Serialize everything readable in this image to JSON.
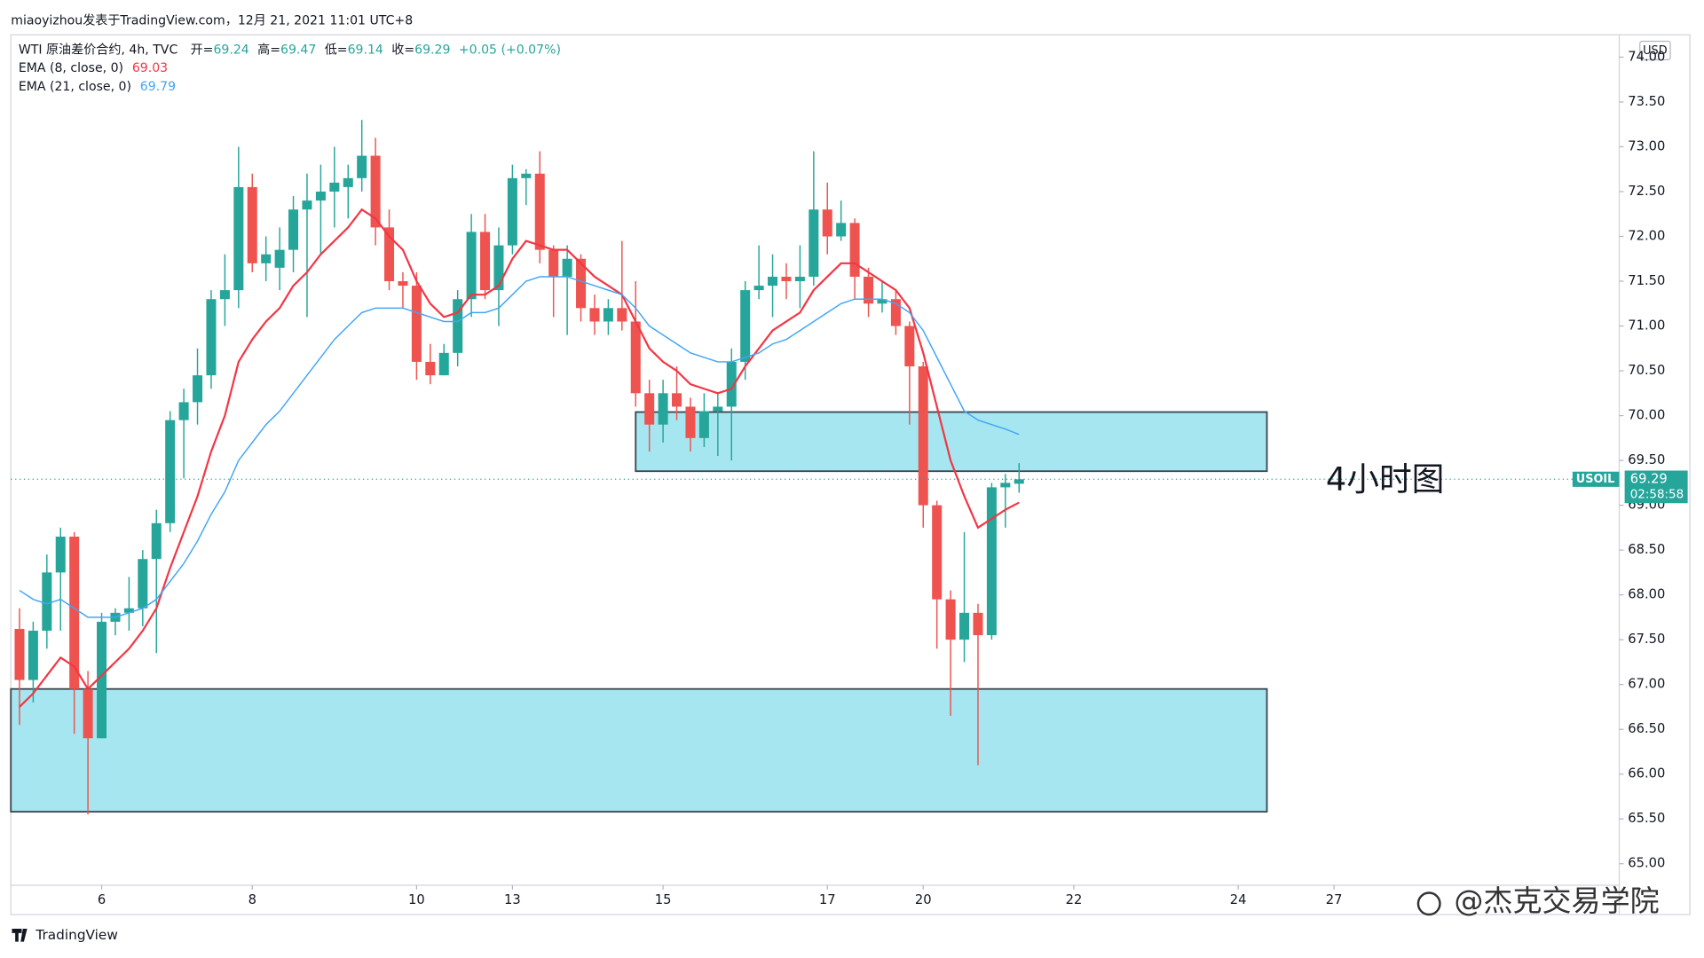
{
  "page": {
    "caption": "miaoyizhou发表于TradingView.com，12月 21, 2021 11:01 UTC+8",
    "brand": "TradingView",
    "author": "@杰克交易学院",
    "annotation": "4小时图"
  },
  "chart_data": {
    "type": "candlestick",
    "symbol_line": "WTI 原油差价合约, 4h, TVC",
    "ohlc_labels": [
      "开=",
      "高=",
      "低=",
      "收="
    ],
    "change": "+0.05 (+0.07%)",
    "currency": "USD",
    "ticker": "USOIL",
    "countdown": "02:58:58",
    "up_color": "#26a69a",
    "down_color": "#ef5350",
    "zone_color": "#a5e6f0",
    "xlim": [
      -0.63,
      116.83
    ],
    "xticks": [
      {
        "value": 6,
        "label": "6"
      },
      {
        "value": 17,
        "label": "8"
      },
      {
        "value": 29,
        "label": "10"
      },
      {
        "value": 36,
        "label": "13"
      },
      {
        "value": 47,
        "label": "15"
      },
      {
        "value": 59,
        "label": "17"
      },
      {
        "value": 66,
        "label": "20"
      },
      {
        "value": 77,
        "label": "22"
      },
      {
        "value": 89,
        "label": "24"
      },
      {
        "value": 96,
        "label": "27"
      }
    ],
    "ylim": [
      64.76,
      74.25
    ],
    "yticks": [
      {
        "value": 65,
        "label": "65.00"
      },
      {
        "value": 65.5,
        "label": "65.50"
      },
      {
        "value": 66,
        "label": "66.00"
      },
      {
        "value": 66.5,
        "label": "66.50"
      },
      {
        "value": 67,
        "label": "67.00"
      },
      {
        "value": 67.5,
        "label": "67.50"
      },
      {
        "value": 68,
        "label": "68.00"
      },
      {
        "value": 68.5,
        "label": "68.50"
      },
      {
        "value": 69,
        "label": "69.00"
      },
      {
        "value": 69.5,
        "label": "69.50"
      },
      {
        "value": 70,
        "label": "70.00"
      },
      {
        "value": 70.5,
        "label": "70.50"
      },
      {
        "value": 71,
        "label": "71.00"
      },
      {
        "value": 71.5,
        "label": "71.50"
      },
      {
        "value": 72,
        "label": "72.00"
      },
      {
        "value": 72.5,
        "label": "72.50"
      },
      {
        "value": 73,
        "label": "73.00"
      },
      {
        "value": 73.5,
        "label": "73.50"
      },
      {
        "value": 74,
        "label": "74.00"
      }
    ],
    "open": [
      67.62,
      67.05,
      67.6,
      68.25,
      68.65,
      66.95,
      66.4,
      67.7,
      67.8,
      67.85,
      68.4,
      68.8,
      69.95,
      70.15,
      70.45,
      71.3,
      71.4,
      72.55,
      71.7,
      71.65,
      71.85,
      72.3,
      72.4,
      72.5,
      72.55,
      72.65,
      72.9,
      72.1,
      71.5,
      71.45,
      70.6,
      70.45,
      70.7,
      71.3,
      72.05,
      71.4,
      71.9,
      72.65,
      72.7,
      71.85,
      71.55,
      71.75,
      71.2,
      71.05,
      71.2,
      71.05,
      70.25,
      69.9,
      70.25,
      70.1,
      69.75,
      70.05,
      70.1,
      70.6,
      71.4,
      71.45,
      71.55,
      71.5,
      71.55,
      72.3,
      72.0,
      72.15,
      71.55,
      71.25,
      71.3,
      71.0,
      70.55,
      69.0,
      67.95,
      67.5,
      67.8,
      67.55,
      69.2,
      69.24
    ],
    "high": [
      67.85,
      67.7,
      68.45,
      68.75,
      68.7,
      67.15,
      67.8,
      67.85,
      68.2,
      68.5,
      68.95,
      70.05,
      70.3,
      70.75,
      71.4,
      71.8,
      73.0,
      72.7,
      72.0,
      72.1,
      72.45,
      72.7,
      72.8,
      73.0,
      72.8,
      73.3,
      73.1,
      72.3,
      71.6,
      71.6,
      70.8,
      70.8,
      71.4,
      72.25,
      72.25,
      72.1,
      72.8,
      72.75,
      72.95,
      71.9,
      71.9,
      71.8,
      71.35,
      71.3,
      71.95,
      71.5,
      70.4,
      70.4,
      70.55,
      70.2,
      70.25,
      70.25,
      70.75,
      71.5,
      71.9,
      71.8,
      71.7,
      71.9,
      72.95,
      72.6,
      72.4,
      72.2,
      71.65,
      71.5,
      71.4,
      71.05,
      70.6,
      69.05,
      68.05,
      68.7,
      67.9,
      69.25,
      69.35,
      69.47
    ],
    "low": [
      66.55,
      66.8,
      67.4,
      67.6,
      66.45,
      65.55,
      66.4,
      67.55,
      67.6,
      67.65,
      67.35,
      68.7,
      69.3,
      69.9,
      70.3,
      71.0,
      71.2,
      71.6,
      71.5,
      71.4,
      71.6,
      71.1,
      71.8,
      72.1,
      72.2,
      72.5,
      71.9,
      71.4,
      71.2,
      70.4,
      70.35,
      70.45,
      70.55,
      71.1,
      71.3,
      71.0,
      71.8,
      72.35,
      71.7,
      71.1,
      70.9,
      71.05,
      70.9,
      70.9,
      70.95,
      70.1,
      69.6,
      69.7,
      69.95,
      69.6,
      69.65,
      69.55,
      69.5,
      70.4,
      71.3,
      71.1,
      71.3,
      71.2,
      71.45,
      71.8,
      71.95,
      71.3,
      71.1,
      71.15,
      70.9,
      69.9,
      68.75,
      67.4,
      66.65,
      67.25,
      66.1,
      67.5,
      68.75,
      69.14
    ],
    "close": [
      67.05,
      67.6,
      68.25,
      68.65,
      66.95,
      66.4,
      67.7,
      67.8,
      67.85,
      68.4,
      68.8,
      69.95,
      70.15,
      70.45,
      71.3,
      71.4,
      72.55,
      71.7,
      71.8,
      71.85,
      72.3,
      72.4,
      72.5,
      72.6,
      72.65,
      72.9,
      72.1,
      71.5,
      71.45,
      70.6,
      70.45,
      70.7,
      71.3,
      72.05,
      71.4,
      71.9,
      72.65,
      72.7,
      71.85,
      71.55,
      71.75,
      71.2,
      71.05,
      71.2,
      71.05,
      70.25,
      69.9,
      70.25,
      70.1,
      69.75,
      70.05,
      70.1,
      70.6,
      71.4,
      71.45,
      71.55,
      71.5,
      71.55,
      72.3,
      72.0,
      72.15,
      71.55,
      71.25,
      71.3,
      71.0,
      70.55,
      69.0,
      67.95,
      67.5,
      67.8,
      67.55,
      69.2,
      69.25,
      69.29
    ],
    "series": [
      {
        "name": "EMA (8, close, 0)",
        "color": "#f23645",
        "values": [
          66.75,
          66.9,
          67.1,
          67.3,
          67.2,
          66.95,
          67.1,
          67.25,
          67.4,
          67.6,
          67.85,
          68.3,
          68.7,
          69.1,
          69.6,
          70.0,
          70.6,
          70.85,
          71.05,
          71.2,
          71.45,
          71.6,
          71.8,
          71.95,
          72.1,
          72.3,
          72.2,
          72.0,
          71.85,
          71.5,
          71.25,
          71.1,
          71.15,
          71.35,
          71.35,
          71.45,
          71.75,
          71.95,
          71.9,
          71.85,
          71.85,
          71.7,
          71.55,
          71.45,
          71.35,
          71.05,
          70.75,
          70.6,
          70.5,
          70.35,
          70.3,
          70.25,
          70.3,
          70.55,
          70.75,
          70.95,
          71.05,
          71.15,
          71.4,
          71.55,
          71.7,
          71.7,
          71.6,
          71.5,
          71.4,
          71.2,
          70.7,
          70.1,
          69.5,
          69.1,
          68.75,
          68.85,
          68.95,
          69.03
        ]
      },
      {
        "name": "EMA (21, close, 0)",
        "color": "#42a5f5",
        "values": [
          68.05,
          67.95,
          67.9,
          67.95,
          67.85,
          67.75,
          67.75,
          67.75,
          67.8,
          67.85,
          67.95,
          68.15,
          68.35,
          68.6,
          68.9,
          69.15,
          69.5,
          69.7,
          69.9,
          70.05,
          70.25,
          70.45,
          70.65,
          70.85,
          71.0,
          71.15,
          71.2,
          71.2,
          71.2,
          71.15,
          71.1,
          71.05,
          71.05,
          71.15,
          71.15,
          71.2,
          71.35,
          71.5,
          71.55,
          71.55,
          71.55,
          71.5,
          71.45,
          71.4,
          71.35,
          71.2,
          71.0,
          70.9,
          70.8,
          70.7,
          70.65,
          70.6,
          70.6,
          70.65,
          70.7,
          70.8,
          70.85,
          70.95,
          71.05,
          71.15,
          71.25,
          71.3,
          71.3,
          71.3,
          71.25,
          71.15,
          70.95,
          70.65,
          70.35,
          70.05,
          69.95,
          69.9,
          69.85,
          69.79
        ]
      }
    ],
    "zones": [
      {
        "x": [
          45,
          91.1
        ],
        "y": [
          69.38,
          70.04
        ]
      },
      {
        "x": [
          -0.63,
          91.1
        ],
        "y": [
          65.58,
          66.95
        ]
      }
    ]
  }
}
